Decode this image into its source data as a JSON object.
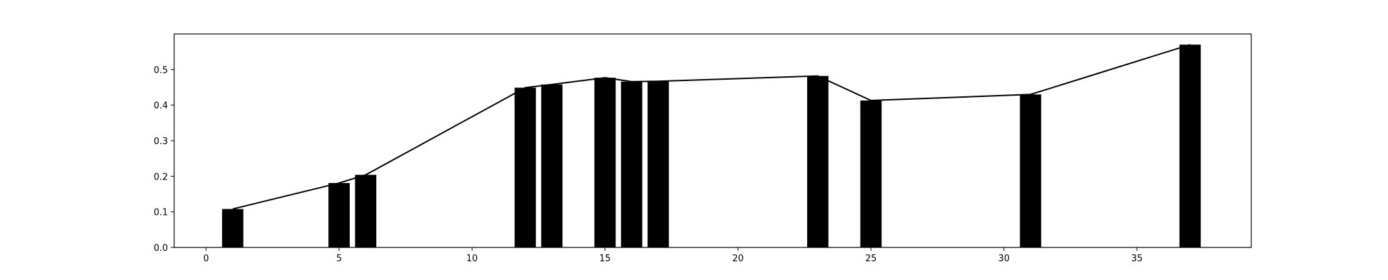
{
  "chart_data": {
    "type": "bar",
    "title": "",
    "xlabel": "",
    "ylabel": "",
    "xlim": [
      -1.2,
      39.3
    ],
    "ylim": [
      0.0,
      0.6
    ],
    "grid": false,
    "x": [
      1,
      5,
      6,
      12,
      13,
      15,
      16,
      17,
      23,
      25,
      31,
      37
    ],
    "values": [
      0.108,
      0.181,
      0.204,
      0.449,
      0.458,
      0.477,
      0.466,
      0.467,
      0.482,
      0.413,
      0.43,
      0.57
    ],
    "bar_width": 0.8,
    "line_overlay": {
      "x": [
        1,
        5,
        6,
        12,
        13,
        15,
        16,
        17,
        23,
        25,
        31,
        37
      ],
      "y": [
        0.108,
        0.181,
        0.204,
        0.449,
        0.458,
        0.477,
        0.466,
        0.467,
        0.482,
        0.413,
        0.43,
        0.57
      ]
    },
    "x_ticks": [
      0,
      5,
      10,
      15,
      20,
      25,
      30,
      35
    ],
    "x_tick_labels": [
      "0",
      "5",
      "10",
      "15",
      "20",
      "25",
      "30",
      "35"
    ],
    "y_ticks": [
      0.0,
      0.1,
      0.2,
      0.3,
      0.4,
      0.5
    ],
    "y_tick_labels": [
      "0.0",
      "0.1",
      "0.2",
      "0.3",
      "0.4",
      "0.5"
    ],
    "colors": {
      "bar": "#000000",
      "line": "#000000",
      "axes": "#000000",
      "background": "#ffffff"
    }
  }
}
